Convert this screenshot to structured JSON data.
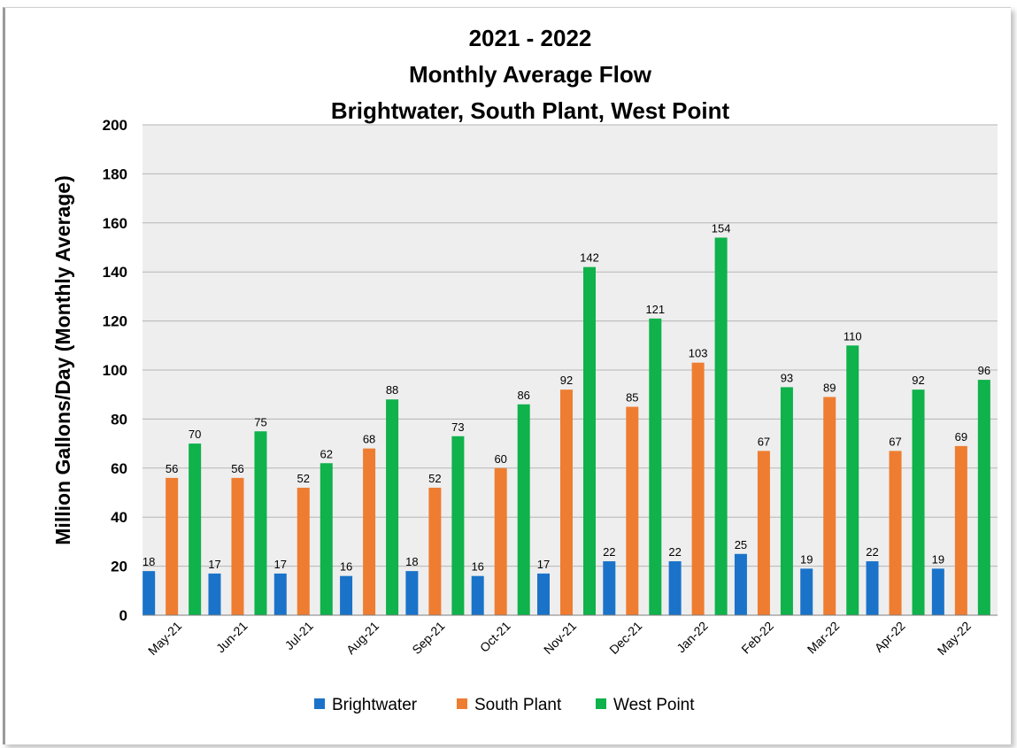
{
  "chart_data": {
    "type": "bar",
    "title": [
      "2021 - 2022",
      "Monthly Average Flow",
      "Brightwater, South Plant, West Point"
    ],
    "xlabel": "",
    "ylabel": "Million Gallons/Day (Monthly Average)",
    "ylim": [
      0,
      200
    ],
    "yticks": [
      0,
      20,
      40,
      60,
      80,
      100,
      120,
      140,
      160,
      180,
      200
    ],
    "grid": true,
    "legend_position": "bottom",
    "categories": [
      "May-21",
      "Jun-21",
      "Jul-21",
      "Aug-21",
      "Sep-21",
      "Oct-21",
      "Nov-21",
      "Dec-21",
      "Jan-22",
      "Feb-22",
      "Mar-22",
      "Apr-22",
      "May-22"
    ],
    "series": [
      {
        "name": "Brightwater",
        "color": "#1a73c9",
        "values": [
          18,
          17,
          17,
          16,
          18,
          16,
          17,
          22,
          22,
          25,
          19,
          22,
          19
        ]
      },
      {
        "name": "South Plant",
        "color": "#ee7d31",
        "values": [
          56,
          56,
          52,
          68,
          52,
          60,
          92,
          85,
          103,
          67,
          89,
          67,
          69
        ]
      },
      {
        "name": "West Point",
        "color": "#0fb24b",
        "values": [
          70,
          75,
          62,
          88,
          73,
          86,
          142,
          121,
          154,
          93,
          110,
          92,
          96
        ]
      }
    ]
  },
  "colors": {
    "plot_background": "#eeeeee",
    "gridline": "#b5b5b5"
  }
}
